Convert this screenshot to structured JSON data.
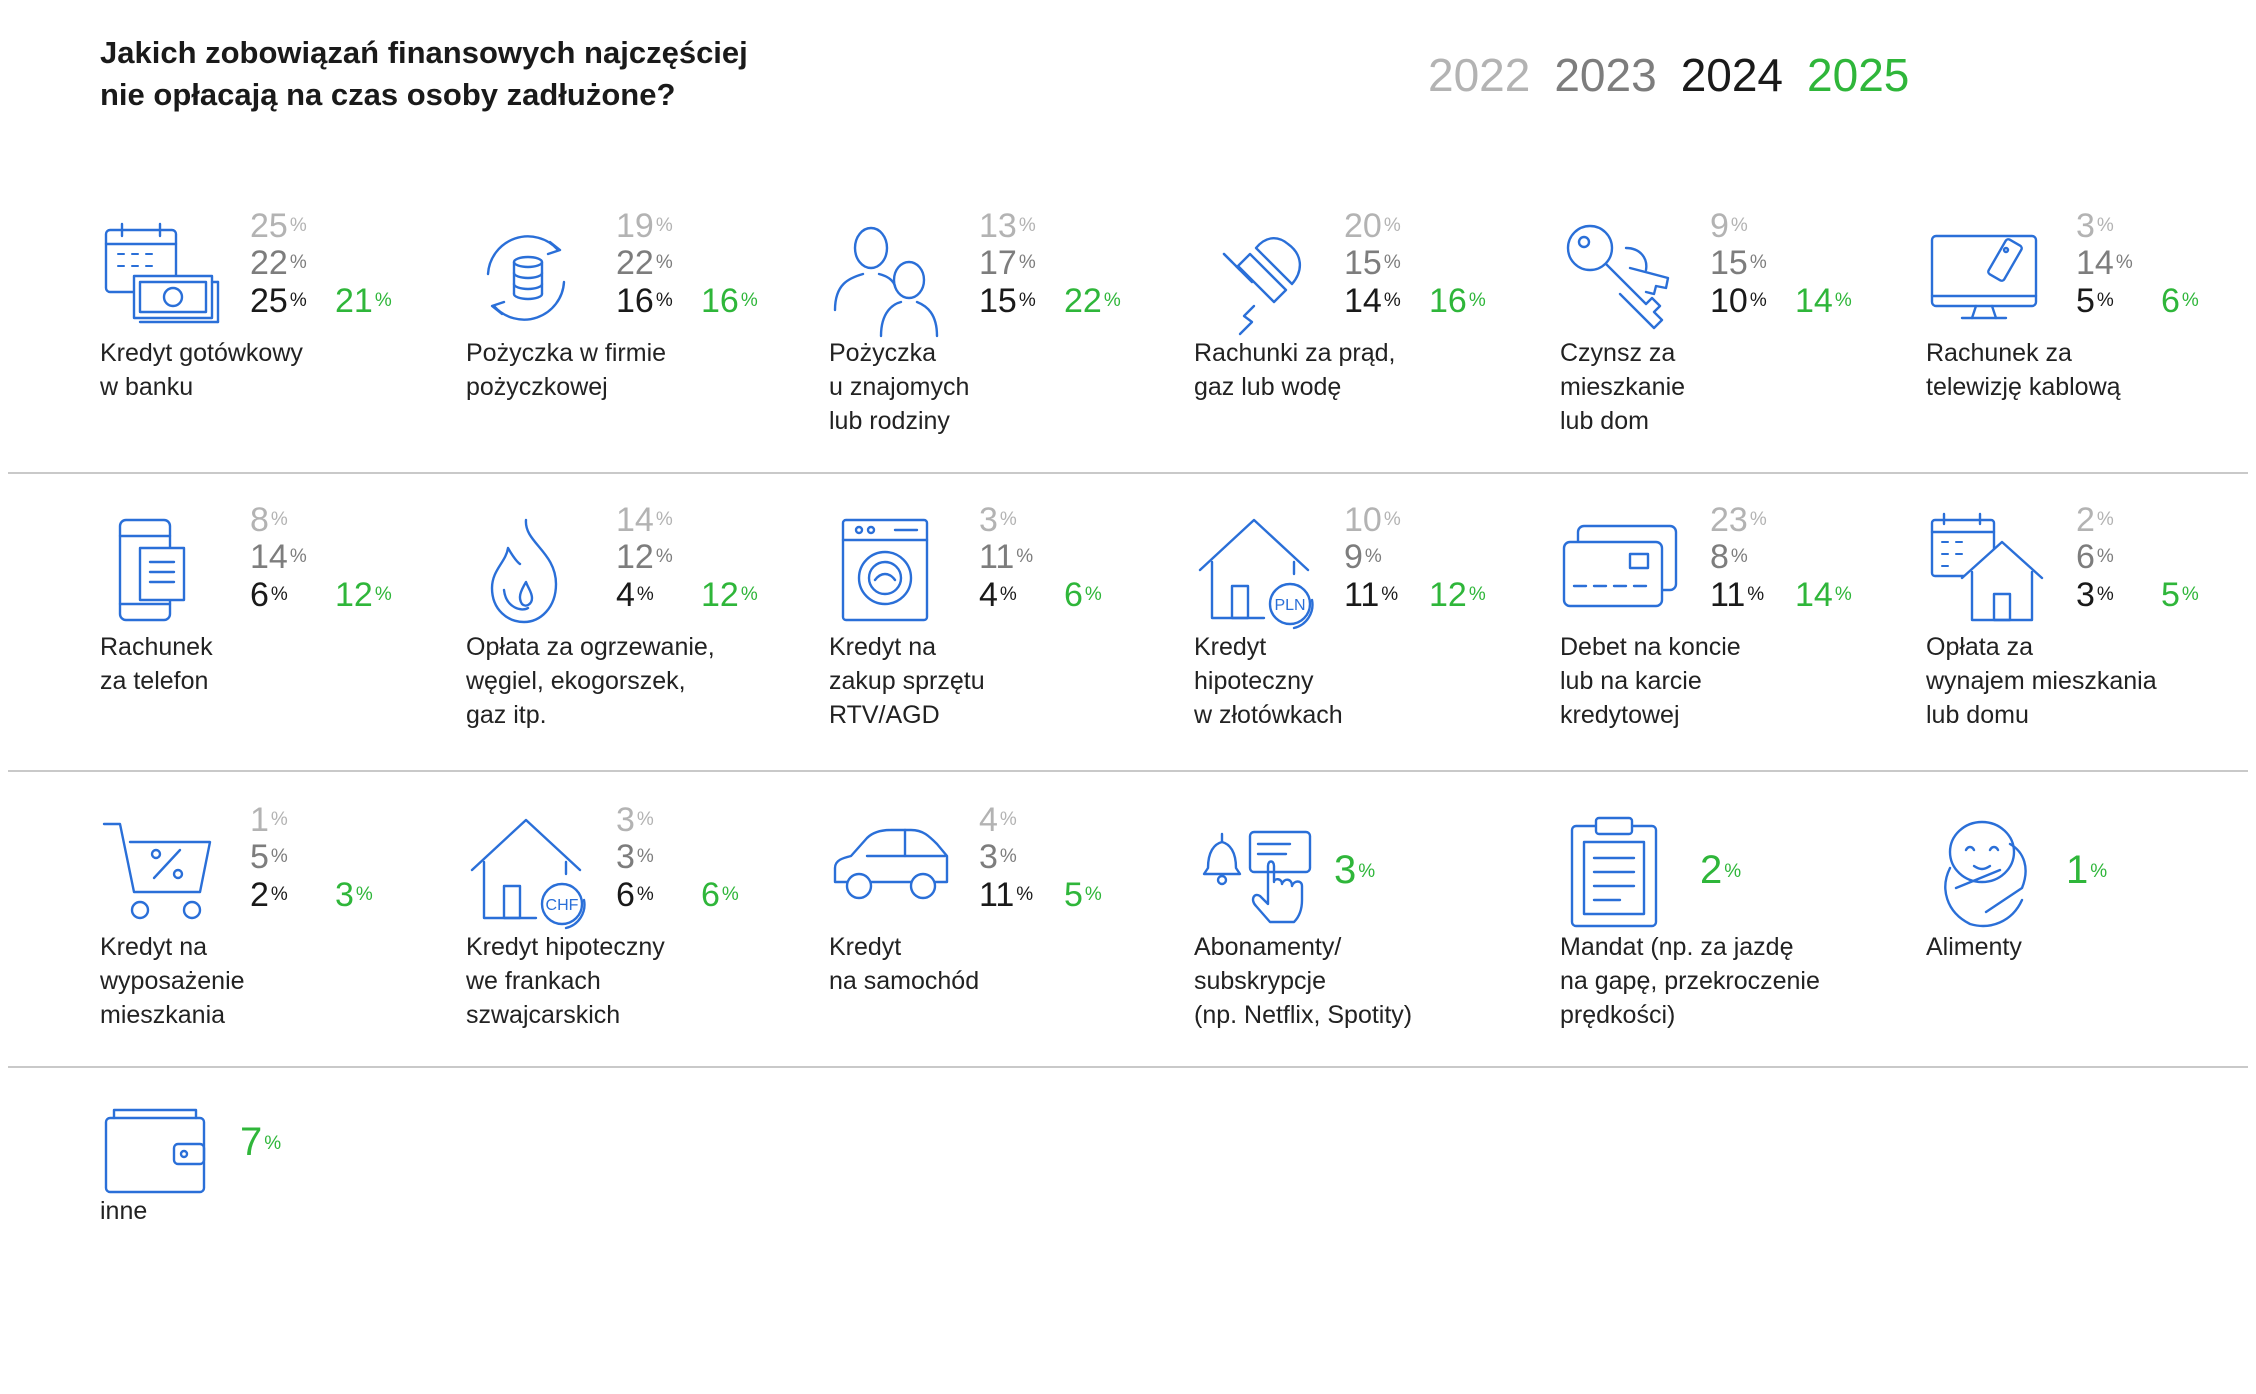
{
  "title": {
    "line1": "Jakich zobowiązań finansowych najczęściej",
    "line2": "nie opłacają na czas osoby zadłużone?"
  },
  "colors": {
    "y2022": "#b3b3b3",
    "y2023": "#7d7d7d",
    "y2024": "#1a1a1a",
    "y2025": "#2fb63a",
    "icon": "#2a6fd8"
  },
  "chart_data": {
    "type": "table",
    "title": "Jakich zobowiązań finansowych najczęściej nie opłacają na czas osoby zadłużone?",
    "legend": [
      "2022",
      "2023",
      "2024",
      "2025"
    ],
    "unit": "%",
    "rows": [
      {
        "label": [
          "Kredyt gotówkowy",
          "w banku"
        ],
        "icon": "cash-calendar-icon",
        "v2022": "25",
        "v2023": "22",
        "v2024": "25",
        "v2025": "21"
      },
      {
        "label": [
          "Pożyczka w firmie",
          "pożyczkowej"
        ],
        "icon": "coins-cycle-icon",
        "v2022": "19",
        "v2023": "22",
        "v2024": "16",
        "v2025": "16"
      },
      {
        "label": [
          "Pożyczka",
          "u znajomych",
          "lub rodziny"
        ],
        "icon": "people-icon",
        "v2022": "13",
        "v2023": "17",
        "v2024": "15",
        "v2025": "22"
      },
      {
        "label": [
          "Rachunki za prąd,",
          "gaz lub wodę"
        ],
        "icon": "plug-icon",
        "v2022": "20",
        "v2023": "15",
        "v2024": "14",
        "v2025": "16"
      },
      {
        "label": [
          "Czynsz za",
          "mieszkanie",
          "lub dom"
        ],
        "icon": "keys-icon",
        "v2022": "9",
        "v2023": "15",
        "v2024": "10",
        "v2025": "14"
      },
      {
        "label": [
          "Rachunek za",
          "telewizję kablową"
        ],
        "icon": "tv-icon",
        "v2022": "3",
        "v2023": "14",
        "v2024": "5",
        "v2025": "6"
      },
      {
        "label": [
          "Rachunek",
          "za telefon"
        ],
        "icon": "phone-bill-icon",
        "v2022": "8",
        "v2023": "14",
        "v2024": "6",
        "v2025": "12"
      },
      {
        "label": [
          "Opłata za ogrzewanie,",
          "węgiel, ekogorszek,",
          "gaz itp."
        ],
        "icon": "flame-icon",
        "v2022": "14",
        "v2023": "12",
        "v2024": "4",
        "v2025": "12"
      },
      {
        "label": [
          "Kredyt na",
          "zakup sprzętu",
          "RTV/AGD"
        ],
        "icon": "washing-machine-icon",
        "v2022": "3",
        "v2023": "11",
        "v2024": "4",
        "v2025": "6"
      },
      {
        "label": [
          "Kredyt",
          "hipoteczny",
          "w złotówkach"
        ],
        "icon": "house-pln-icon",
        "iconText": "PLN",
        "v2022": "10",
        "v2023": "9",
        "v2024": "11",
        "v2025": "12"
      },
      {
        "label": [
          "Debet na koncie",
          "lub na karcie",
          "kredytowej"
        ],
        "icon": "credit-card-icon",
        "v2022": "23",
        "v2023": "8",
        "v2024": "11",
        "v2025": "14"
      },
      {
        "label": [
          "Opłata za",
          "wynajem mieszkania",
          "lub domu"
        ],
        "icon": "house-calendar-icon",
        "v2022": "2",
        "v2023": "6",
        "v2024": "3",
        "v2025": "5"
      },
      {
        "label": [
          "Kredyt na",
          "wyposażenie",
          "mieszkania"
        ],
        "icon": "shopping-cart-icon",
        "v2022": "1",
        "v2023": "5",
        "v2024": "2",
        "v2025": "3"
      },
      {
        "label": [
          "Kredyt hipoteczny",
          "we frankach",
          "szwajcarskich"
        ],
        "icon": "house-chf-icon",
        "iconText": "CHF",
        "v2022": "3",
        "v2023": "3",
        "v2024": "6",
        "v2025": "6"
      },
      {
        "label": [
          "Kredyt",
          "na samochód"
        ],
        "icon": "car-icon",
        "v2022": "4",
        "v2023": "3",
        "v2024": "11",
        "v2025": "5"
      },
      {
        "label": [
          "Abonamenty/",
          "subskrypcje",
          "(np. Netflix, Spotity)"
        ],
        "icon": "bell-click-icon",
        "v2025": "3"
      },
      {
        "label": [
          "Mandat (np. za jazdę",
          "na gapę, przekroczenie",
          "prędkości)"
        ],
        "icon": "clipboard-icon",
        "v2025": "2"
      },
      {
        "label": [
          "Alimenty"
        ],
        "icon": "baby-icon",
        "v2025": "1"
      },
      {
        "label": [
          "inne"
        ],
        "icon": "wallet-icon",
        "v2025": "7"
      }
    ]
  }
}
